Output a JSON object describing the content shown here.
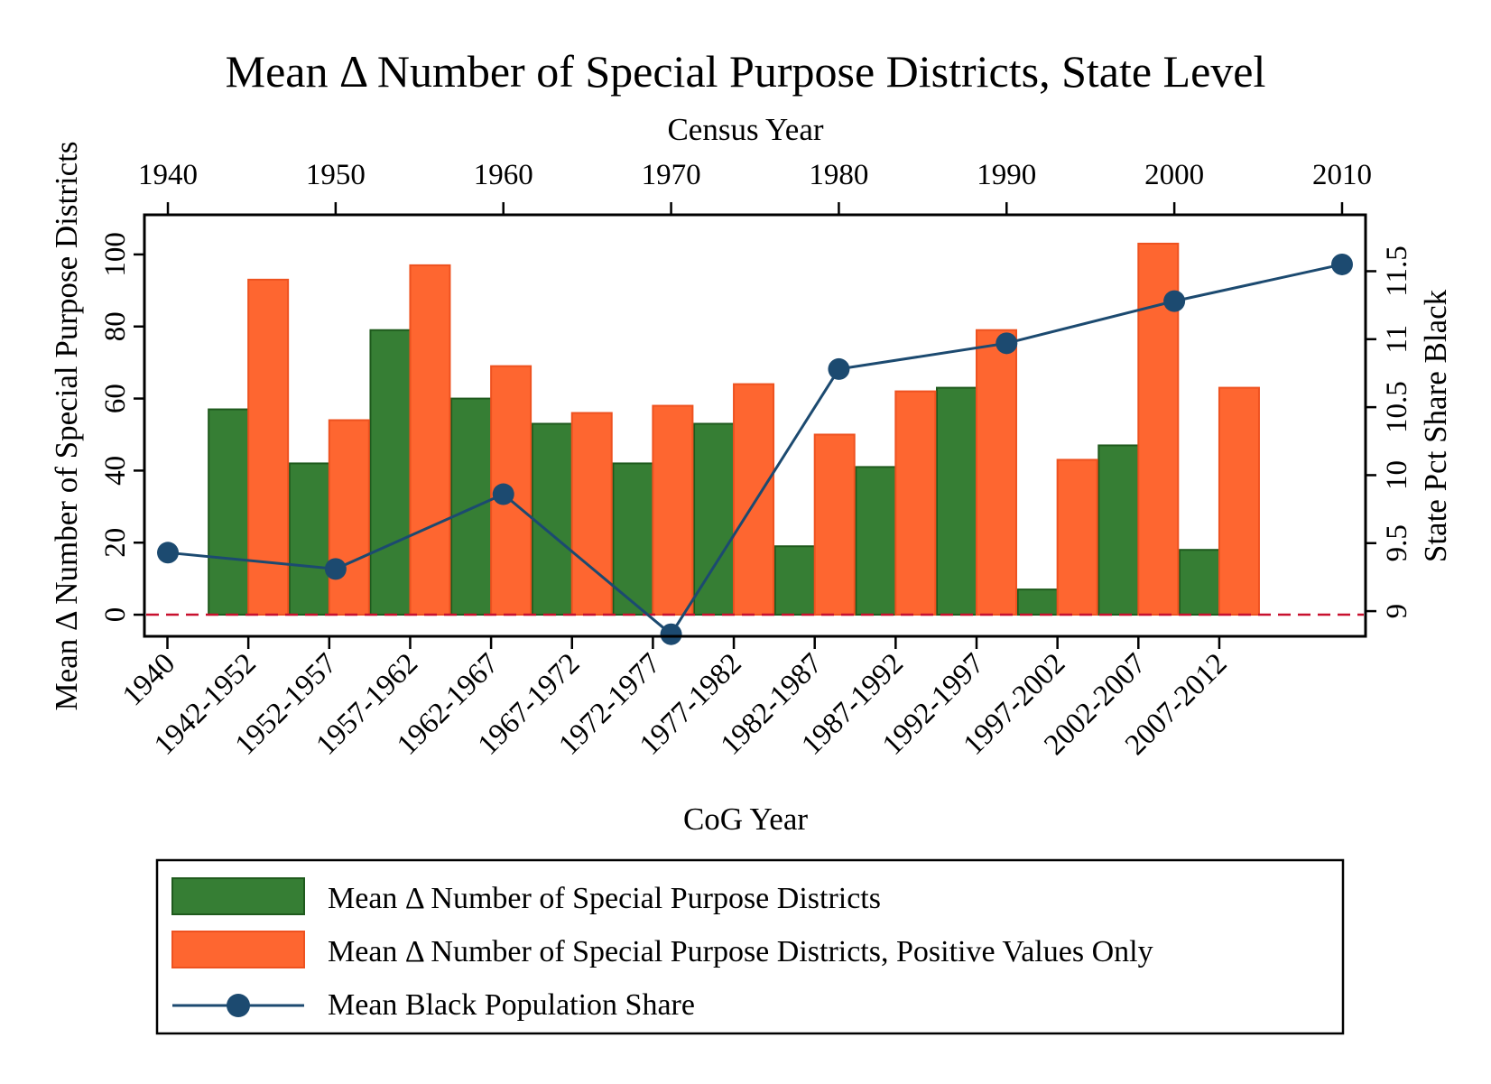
{
  "chart_data": {
    "type": "bar",
    "title": "Mean Δ Number of Special Purpose Districts, State Level",
    "xlabel": "CoG Year",
    "ylabel": "Mean Δ Number of Special Purpose Districts",
    "y2label": "State Pct Share Black",
    "x2label": "Census Year",
    "ylim": [
      -6,
      111
    ],
    "yticks": [
      0,
      20,
      40,
      60,
      80,
      100
    ],
    "y2lim": [
      8.8147,
      11.9147
    ],
    "y2ticks": [
      "9",
      "9.5",
      "10",
      "10.5",
      "11",
      "11.5"
    ],
    "x2lim": [
      1938.6,
      2011.4
    ],
    "x2ticks": [
      "1940",
      "1950",
      "1960",
      "1970",
      "1980",
      "1990",
      "2000",
      "2010"
    ],
    "categories": [
      "1940",
      "1942-1952",
      "1952-1957",
      "1957-1962",
      "1962-1967",
      "1967-1972",
      "1972-1977",
      "1977-1982",
      "1982-1987",
      "1987-1992",
      "1992-1997",
      "1997-2002",
      "2002-2007",
      "2007-2012"
    ],
    "series": [
      {
        "name": "Mean Δ Number of Special Purpose Districts",
        "color": "#367e34",
        "values": [
          null,
          57,
          42,
          79,
          60,
          53,
          42,
          53,
          19,
          41,
          63,
          7,
          47,
          18
        ]
      },
      {
        "name": "Mean Δ Number of Special Purpose Districts, Positive Values Only",
        "color": "#fe6630",
        "values": [
          null,
          93,
          54,
          97,
          69,
          56,
          58,
          64,
          50,
          62,
          79,
          43,
          103,
          63
        ]
      },
      {
        "name": "Mean Black Population Share",
        "color": "#1c4a70",
        "type": "line",
        "axis": "right",
        "x": [
          1940,
          1950,
          1960,
          1970,
          1980,
          1990,
          2000,
          2010
        ],
        "values": [
          9.43,
          9.31,
          9.86,
          8.83,
          10.78,
          10.97,
          11.28,
          11.55
        ]
      }
    ],
    "zero_line": {
      "y": 0,
      "color": "#c8102e",
      "style": "dashed"
    },
    "grid": false,
    "legend_position": "bottom"
  }
}
